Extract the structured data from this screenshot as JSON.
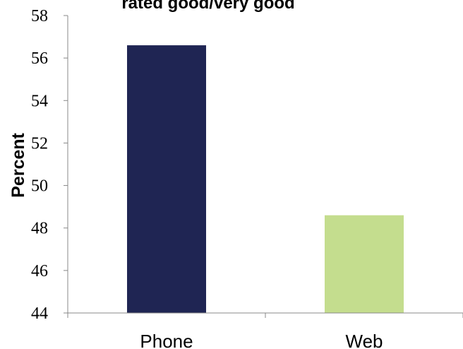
{
  "chart_data": {
    "type": "bar",
    "title": "rated good/very good",
    "xlabel": "",
    "ylabel": "Percent",
    "categories": [
      "Phone",
      "Web"
    ],
    "values": [
      56.6,
      48.6
    ],
    "ylim": [
      44,
      58
    ],
    "yticks": [
      "44",
      "46",
      "48",
      "50",
      "52",
      "54",
      "56",
      "58"
    ],
    "colors": [
      "#1f2553",
      "#c4dd8e"
    ],
    "grid": false,
    "legend": "none"
  }
}
